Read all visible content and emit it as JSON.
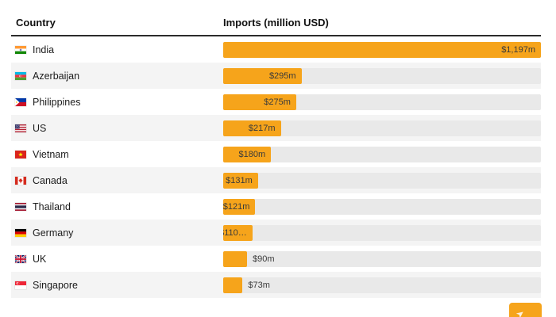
{
  "header": {
    "country": "Country",
    "imports": "Imports (million USD)"
  },
  "rows": [
    {
      "country": "India",
      "flag_icon": "india-flag-icon",
      "value": 1197,
      "label": "$1,197m",
      "label_position": "inside"
    },
    {
      "country": "Azerbaijan",
      "flag_icon": "azerbaijan-flag-icon",
      "value": 295,
      "label": "$295m",
      "label_position": "inside"
    },
    {
      "country": "Philippines",
      "flag_icon": "philippines-flag-icon",
      "value": 275,
      "label": "$275m",
      "label_position": "inside"
    },
    {
      "country": "US",
      "flag_icon": "us-flag-icon",
      "value": 217,
      "label": "$217m",
      "label_position": "inside"
    },
    {
      "country": "Vietnam",
      "flag_icon": "vietnam-flag-icon",
      "value": 180,
      "label": "$180m",
      "label_position": "inside"
    },
    {
      "country": "Canada",
      "flag_icon": "canada-flag-icon",
      "value": 131,
      "label": "$131m",
      "label_position": "inside"
    },
    {
      "country": "Thailand",
      "flag_icon": "thailand-flag-icon",
      "value": 121,
      "label": "$121m",
      "label_position": "inside"
    },
    {
      "country": "Germany",
      "flag_icon": "germany-flag-icon",
      "value": 110,
      "label": "$110…",
      "label_position": "inside"
    },
    {
      "country": "UK",
      "flag_icon": "uk-flag-icon",
      "value": 90,
      "label": "$90m",
      "label_position": "outside"
    },
    {
      "country": "Singapore",
      "flag_icon": "singapore-flag-icon",
      "value": 73,
      "label": "$73m",
      "label_position": "outside"
    }
  ],
  "pagination": {
    "next_icon": "arrow-right-icon",
    "button_color": "#F6A41B"
  },
  "colors": {
    "bar_orange": "#F6A41B",
    "track_gray": "#E9E9E9",
    "row_stripe": "#F4F4F4",
    "header_rule": "#2B2B2B"
  },
  "chart_data": {
    "type": "bar",
    "orientation": "horizontal",
    "title": "",
    "xlabel": "Imports (million USD)",
    "ylabel": "Country",
    "categories": [
      "India",
      "Azerbaijan",
      "Philippines",
      "US",
      "Vietnam",
      "Canada",
      "Thailand",
      "Germany",
      "UK",
      "Singapore"
    ],
    "values": [
      1197,
      295,
      275,
      217,
      180,
      131,
      121,
      110,
      90,
      73
    ],
    "value_labels": [
      "$1,197m",
      "$295m",
      "$275m",
      "$217m",
      "$180m",
      "$131m",
      "$121m",
      "$110…",
      "$90m",
      "$73m"
    ],
    "xlim": [
      0,
      1197
    ],
    "grid": false,
    "legend": false,
    "bar_color": "#F6A41B",
    "track_color": "#E9E9E9"
  }
}
